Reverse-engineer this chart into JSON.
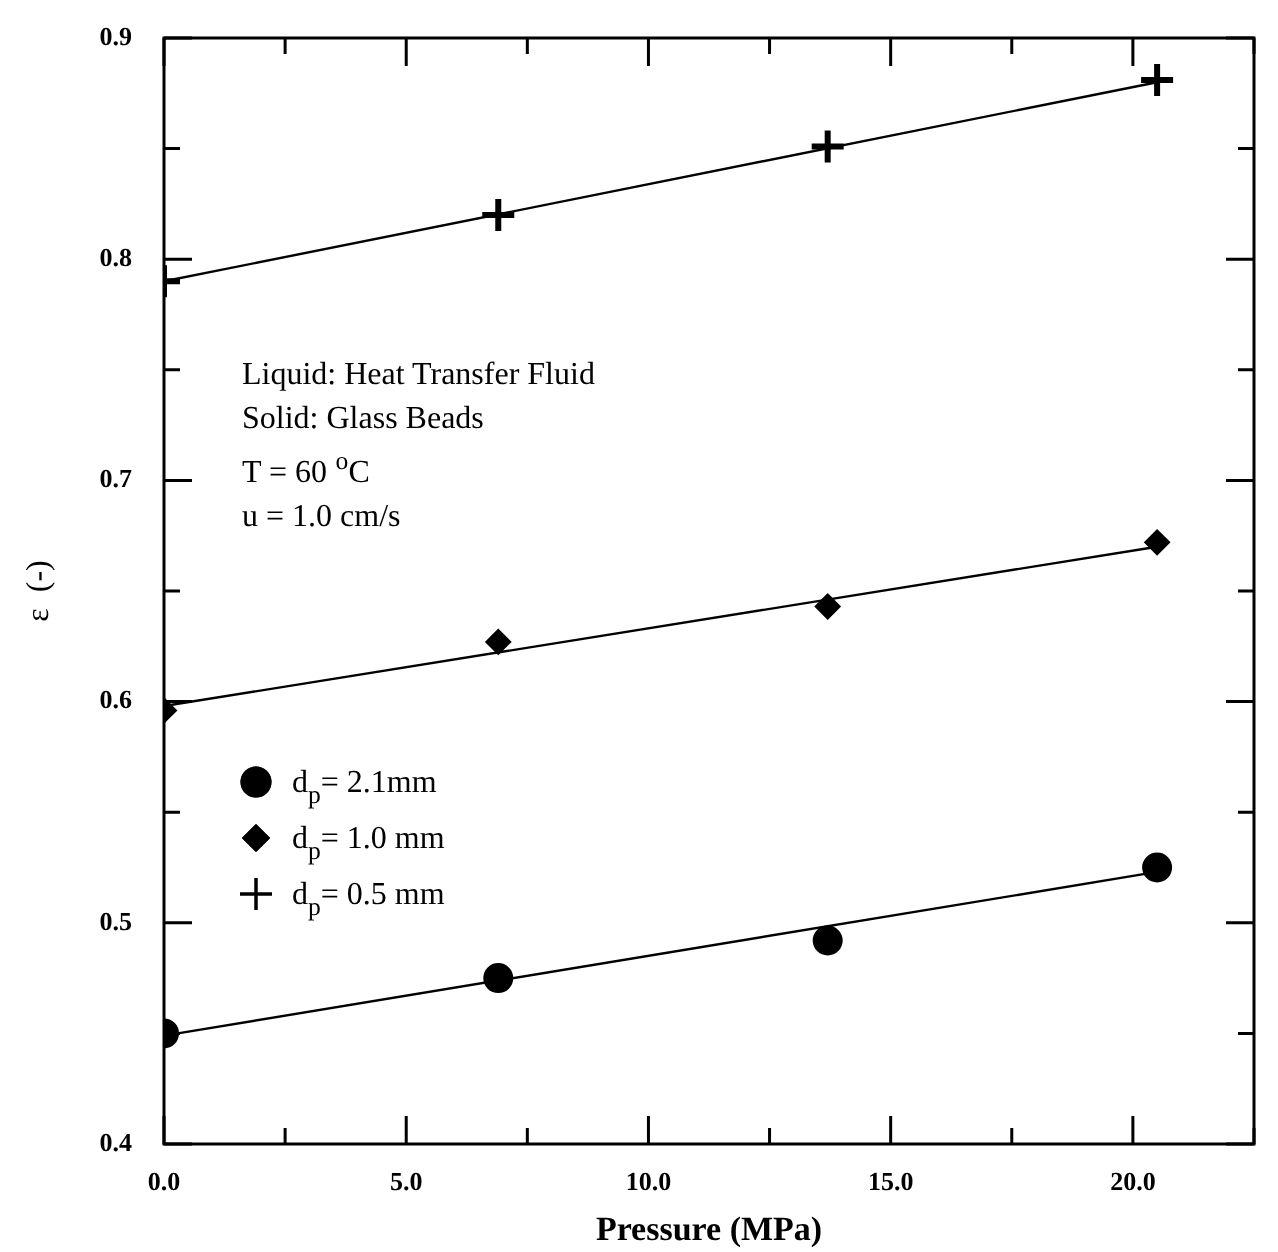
{
  "chart_data": {
    "type": "scatter",
    "xlabel": "Pressure (MPa)",
    "ylabel": "ε  (-)",
    "xlim": [
      0,
      22.5
    ],
    "xticks": [
      {
        "value": 0,
        "label": "0.0"
      },
      {
        "value": 2.5,
        "label": null
      },
      {
        "value": 5,
        "label": "5.0"
      },
      {
        "value": 7.5,
        "label": null
      },
      {
        "value": 10,
        "label": "10.0"
      },
      {
        "value": 12.5,
        "label": null
      },
      {
        "value": 15,
        "label": "15.0"
      },
      {
        "value": 17.5,
        "label": null
      },
      {
        "value": 20,
        "label": "20.0"
      },
      {
        "value": 22.5,
        "label": null
      }
    ],
    "ylim": [
      0.4,
      0.9
    ],
    "yticks": [
      0.4,
      {
        "value": 0.45,
        "label": null
      },
      0.5,
      {
        "value": 0.55,
        "label": null
      },
      0.6,
      {
        "value": 0.65,
        "label": null
      },
      0.7,
      {
        "value": 0.75,
        "label": null
      },
      0.8,
      {
        "value": 0.85,
        "label": null
      },
      0.9
    ],
    "grid": false,
    "legend": "left",
    "series": [
      {
        "name": "d$_{p}$= 2.1mm",
        "marker": "circle",
        "color": "#000000",
        "x": [
          0,
          6.9,
          13.7,
          20.5
        ],
        "values": [
          0.45,
          0.475,
          0.492,
          0.525
        ]
      },
      {
        "name": "d$_{p}$= 1.0 mm",
        "marker": "diamond",
        "color": "#000000",
        "x": [
          0,
          6.9,
          13.7,
          20.5
        ],
        "values": [
          0.596,
          0.627,
          0.643,
          0.672
        ]
      },
      {
        "name": "d$_{p}$= 0.5 mm",
        "marker": "cross",
        "color": "#000000",
        "x": [
          0,
          6.9,
          13.7,
          20.5
        ],
        "values": [
          0.79,
          0.82,
          0.851,
          0.881
        ]
      },
      {
        "type": "line",
        "marker": "none",
        "line_style": "solid",
        "color": "#000000",
        "x": [
          0,
          20.5
        ],
        "values": [
          0.449,
          0.523
        ]
      },
      {
        "type": "line",
        "marker": "none",
        "line_style": "solid",
        "color": "#000000",
        "x": [
          0,
          20.5
        ],
        "values": [
          0.598,
          0.67
        ]
      },
      {
        "type": "line",
        "marker": "none",
        "line_style": "solid",
        "color": "#000000",
        "x": [
          0,
          20.5
        ],
        "values": [
          0.79,
          0.88
        ]
      }
    ],
    "annotations": [
      "Liquid: Heat Transfer Fluid",
      "Solid: Glass Beads",
      "T = 60 $^{o}$C",
      "u = 1.0 cm/s"
    ]
  }
}
